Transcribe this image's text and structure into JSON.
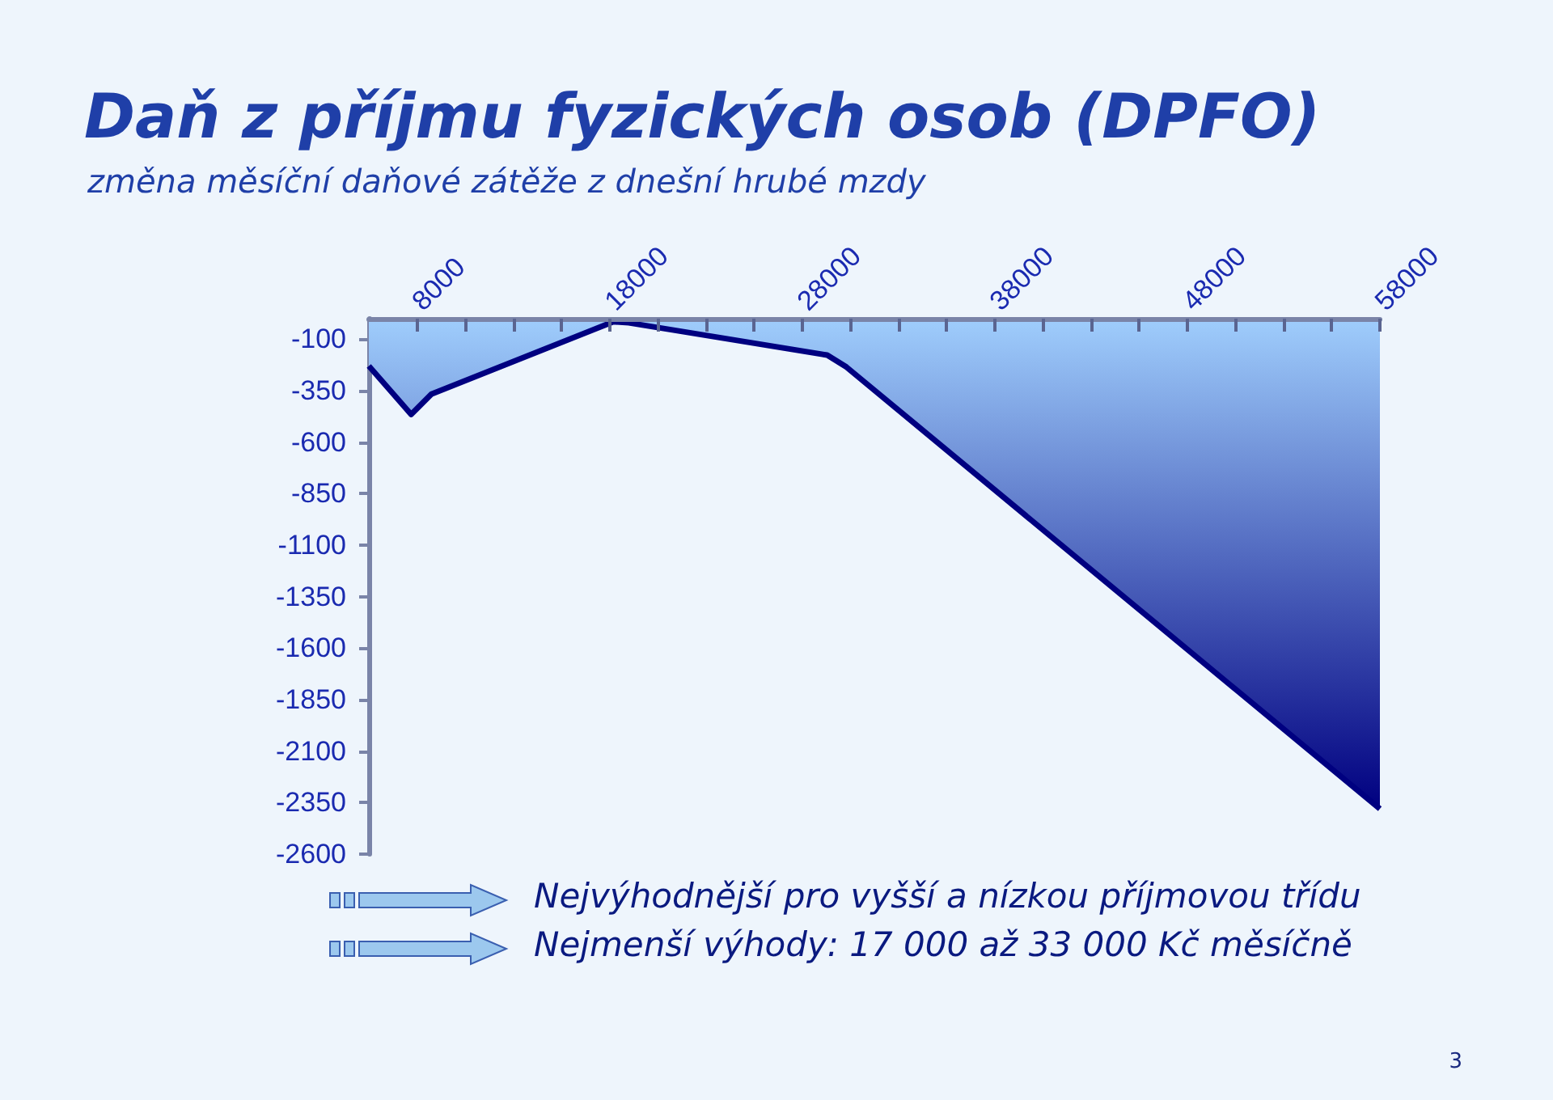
{
  "chart_data": {
    "type": "area",
    "title": "Daň z příjmu fyzických osob (DPFO)",
    "subtitle": "změna měsíční daňové zátěže z dnešní hrubé mzdy",
    "x": [
      5500,
      7700,
      8750,
      18200,
      19000,
      29300,
      30300,
      58000
    ],
    "series": [
      {
        "color": "#000080",
        "values": [
          -230,
          -465,
          -366,
          -15,
          -20,
          -177,
          -235,
          -2380
        ]
      }
    ],
    "xlim": [
      5500,
      58000
    ],
    "xticks": [
      8000,
      {
        "value": 10500,
        "label": null
      },
      {
        "value": 13000,
        "label": null
      },
      {
        "value": 15500,
        "label": null
      },
      18000,
      {
        "value": 20500,
        "label": null
      },
      {
        "value": 23000,
        "label": null
      },
      {
        "value": 25500,
        "label": null
      },
      28000,
      {
        "value": 30500,
        "label": null
      },
      {
        "value": 33000,
        "label": null
      },
      {
        "value": 35500,
        "label": null
      },
      38000,
      {
        "value": 40500,
        "label": null
      },
      {
        "value": 43000,
        "label": null
      },
      {
        "value": 45500,
        "label": null
      },
      48000,
      {
        "value": 50500,
        "label": null
      },
      {
        "value": 53000,
        "label": null
      },
      {
        "value": 55500,
        "label": null
      },
      58000
    ],
    "ylim": [
      -2600,
      0
    ],
    "yticks": [
      -100,
      -350,
      -600,
      -850,
      -1100,
      -1350,
      -1600,
      -1850,
      -2100,
      -2350,
      -2600
    ],
    "marker": "none",
    "grid": false,
    "annotations": [
      "Nejvýhodnější pro vyšší a nízkou příjmovou třídu",
      "Nejmenší výhody: 17 000 až 33 000 Kč měsíčně",
      "3"
    ]
  }
}
